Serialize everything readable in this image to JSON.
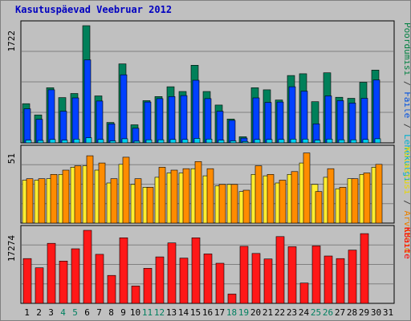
{
  "chart_data": {
    "type": "bar",
    "title": "Kasutuspäevad Veebruar 2012",
    "categories": [
      "1",
      "2",
      "3",
      "4",
      "5",
      "6",
      "7",
      "8",
      "9",
      "10",
      "11",
      "12",
      "13",
      "14",
      "15",
      "16",
      "17",
      "18",
      "19",
      "20",
      "21",
      "22",
      "23",
      "24",
      "25",
      "26",
      "27",
      "28",
      "29",
      "30",
      "31"
    ],
    "weekend_categories": [
      "4",
      "5",
      "11",
      "12",
      "18",
      "19",
      "25",
      "26"
    ],
    "panels": [
      {
        "id": "top",
        "max_label": "1722",
        "ymax": 1722,
        "ylabel_parts": [
          {
            "text": "Pöördumisi",
            "color": "#008040"
          },
          {
            "text": " / ",
            "color": "#404040"
          },
          {
            "text": "Faile",
            "color": "#0050e0"
          },
          {
            "text": " / ",
            "color": "#404040"
          },
          {
            "text": "Lehekülgi",
            "color": "#00b0d0"
          }
        ],
        "series": [
          {
            "name": "Pöördumisi",
            "color": "#00805a",
            "values": [
              575,
              410,
              810,
              665,
              725,
              1722,
              690,
              300,
              1160,
              265,
              620,
              680,
              825,
              755,
              1140,
              755,
              555,
              350,
              90,
              810,
              780,
              630,
              990,
              1015,
              605,
              1030,
              670,
              655,
              890,
              1070,
              null
            ]
          },
          {
            "name": "Faile",
            "color": "#0040ff",
            "values": [
              500,
              345,
              780,
              465,
              660,
              1220,
              615,
              280,
              1000,
              215,
              600,
              650,
              680,
              695,
              920,
              650,
              465,
              330,
              70,
              660,
              595,
              600,
              825,
              760,
              280,
              690,
              620,
              585,
              655,
              925,
              null
            ]
          },
          {
            "name": "Lehekülgi",
            "color": "#00d0f0",
            "values": [
              40,
              35,
              50,
              40,
              55,
              75,
              50,
              30,
              60,
              25,
              45,
              45,
              50,
              50,
              65,
              55,
              40,
              30,
              20,
              50,
              50,
              50,
              55,
              55,
              40,
              55,
              45,
              45,
              50,
              60,
              null
            ]
          }
        ]
      },
      {
        "id": "middle",
        "max_label": "51",
        "ymax": 51,
        "ylabel_parts": [
          {
            "text": "Külastusi",
            "color": "#e8d800"
          },
          {
            "text": " / ",
            "color": "#404040"
          },
          {
            "text": "Arvuteid",
            "color": "#e88000"
          }
        ],
        "series": [
          {
            "name": "Külastusi",
            "color": "#ffee30",
            "values": [
              30,
              30,
              31,
              34,
              39,
              40,
              37,
              28,
              41,
              27,
              25,
              32,
              35,
              35,
              38,
              33,
              26,
              27,
              22,
              34,
              33,
              28,
              34,
              42,
              27,
              32,
              24,
              31,
              34,
              39,
              null
            ]
          },
          {
            "name": "Arvuteid",
            "color": "#ff8c00",
            "values": [
              31,
              31,
              34,
              37,
              40,
              47,
              42,
              31,
              46,
              31,
              25,
              39,
              37,
              38,
              43,
              38,
              27,
              27,
              23,
              40,
              34,
              30,
              36,
              49,
              22,
              38,
              25,
              31,
              35,
              41,
              null
            ]
          }
        ]
      },
      {
        "id": "bottom",
        "max_label": "17274",
        "ymax": 17274,
        "ylabel_parts": [
          {
            "text": "KBaite",
            "color": "#ff0000"
          }
        ],
        "series": [
          {
            "name": "KBaite",
            "color": "#ff1818",
            "values": [
              10600,
              8400,
              14200,
              10000,
              12900,
              17274,
              11600,
              6600,
              15500,
              4100,
              8300,
              11000,
              14300,
              10700,
              15500,
              11700,
              9500,
              2200,
              13500,
              11800,
              10500,
              15800,
              13400,
              4800,
              13600,
              11200,
              10600,
              12600,
              16500,
              null,
              null
            ]
          }
        ]
      }
    ]
  }
}
